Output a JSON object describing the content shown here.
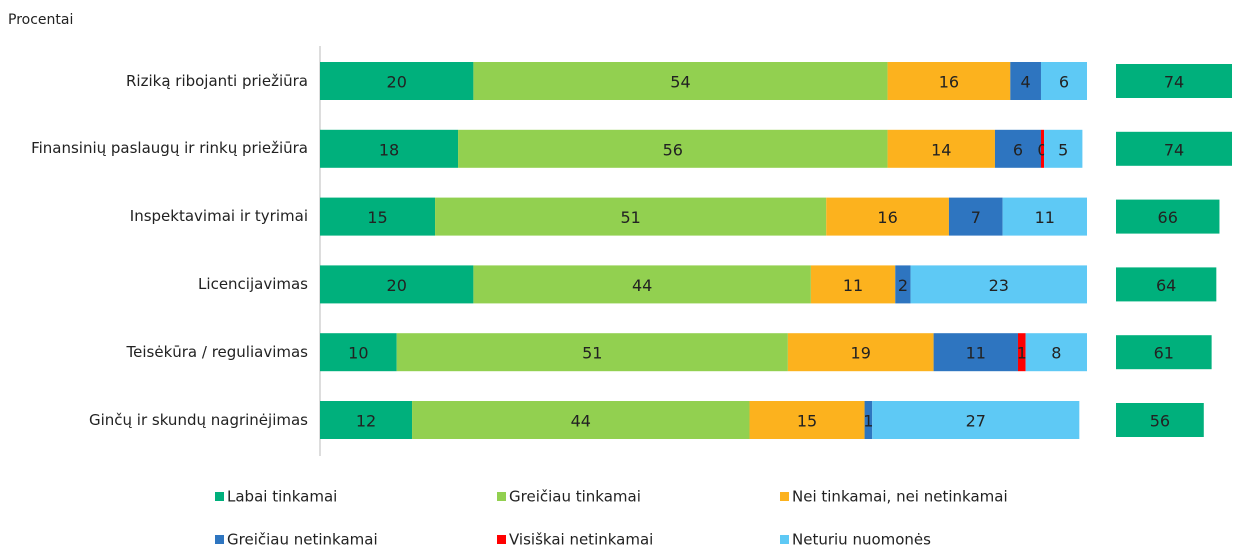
{
  "chart_data": {
    "type": "stacked-bar-horizontal",
    "title": "Procentai",
    "categories": [
      "Riziką ribojanti priežiūra",
      "Finansinių paslaugų ir rinkų priežiūra",
      "Inspektavimai ir tyrimai",
      "Licencijavimas",
      "Teisėkūra / reguliavimas",
      "Ginčų ir skundų nagrinėjimas"
    ],
    "xlim": [
      0,
      100
    ],
    "series": [
      {
        "name": "Labai tinkamai",
        "color": "#00b07c",
        "values": [
          20,
          18,
          15,
          20,
          10,
          12
        ]
      },
      {
        "name": "Greičiau tinkamai",
        "color": "#92d050",
        "values": [
          54,
          56,
          51,
          44,
          51,
          44
        ]
      },
      {
        "name": "Nei tinkamai, nei netinkamai",
        "color": "#fcb21e",
        "values": [
          16,
          14,
          16,
          11,
          19,
          15
        ]
      },
      {
        "name": "Greičiau netinkamai",
        "color": "#2e75c0",
        "values": [
          4,
          6,
          7,
          2,
          11,
          1
        ]
      },
      {
        "name": "Visiškai netinkamai",
        "color": "#ff0000",
        "values": [
          null,
          0.4,
          null,
          null,
          1,
          null
        ],
        "value_labels": [
          null,
          "0",
          null,
          null,
          "1",
          null
        ]
      },
      {
        "name": "Neturiu nuomonės",
        "color": "#5ec9f5",
        "values": [
          6,
          5,
          11,
          23,
          8,
          27
        ]
      }
    ],
    "totals": {
      "color": "#00b07c",
      "values": [
        74,
        74,
        66,
        64,
        61,
        56
      ]
    },
    "legend": "bottom"
  }
}
